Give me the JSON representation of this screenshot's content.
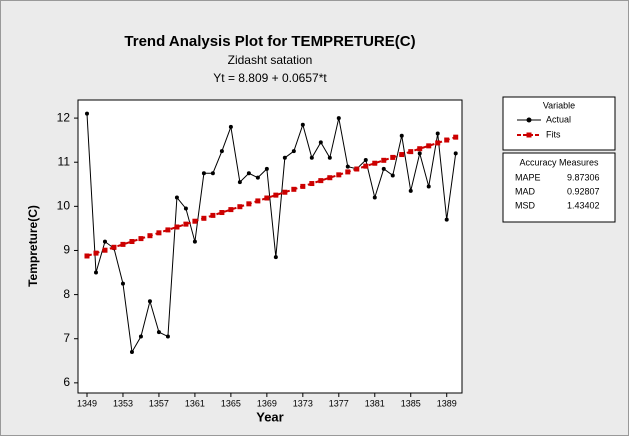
{
  "chart_data": {
    "type": "line",
    "title": "Trend Analysis Plot for TEMPRETURE(C)",
    "subtitle": "Zidasht satation",
    "equation": "Yt = 8.809 + 0.0657*t",
    "x_label": "Year",
    "y_label": "Tempreture(C)",
    "x": [
      1349,
      1350,
      1351,
      1352,
      1353,
      1354,
      1355,
      1356,
      1357,
      1358,
      1359,
      1360,
      1361,
      1362,
      1363,
      1364,
      1365,
      1366,
      1367,
      1368,
      1369,
      1370,
      1371,
      1372,
      1373,
      1374,
      1375,
      1376,
      1377,
      1378,
      1379,
      1380,
      1381,
      1382,
      1383,
      1384,
      1385,
      1386,
      1387,
      1388,
      1389,
      1390
    ],
    "series": [
      {
        "name": "Actual",
        "color": "#000000",
        "marker": "circle",
        "dashed": false,
        "values": [
          12.1,
          8.5,
          9.2,
          9.05,
          8.25,
          6.7,
          7.05,
          7.85,
          7.15,
          7.05,
          10.2,
          9.95,
          9.2,
          10.75,
          10.75,
          11.25,
          11.8,
          10.55,
          10.75,
          10.65,
          10.85,
          8.85,
          11.1,
          11.25,
          11.85,
          11.1,
          11.45,
          11.1,
          12.0,
          10.9,
          10.85,
          11.05,
          10.2,
          10.85,
          10.7,
          11.6,
          10.35,
          11.2,
          10.45,
          11.65,
          9.7,
          11.2
        ]
      },
      {
        "name": "Fits",
        "color": "#cc0000",
        "marker": "square",
        "dashed": true,
        "values": [
          8.875,
          8.94,
          9.006,
          9.072,
          9.138,
          9.203,
          9.269,
          9.335,
          9.4,
          9.466,
          9.532,
          9.597,
          9.663,
          9.729,
          9.795,
          9.86,
          9.926,
          9.992,
          10.057,
          10.123,
          10.189,
          10.254,
          10.32,
          10.386,
          10.452,
          10.517,
          10.583,
          10.649,
          10.714,
          10.78,
          10.846,
          10.911,
          10.977,
          11.043,
          11.109,
          11.174,
          11.24,
          11.306,
          11.371,
          11.437,
          11.503,
          11.568
        ]
      }
    ],
    "legend_title": "Variable",
    "legend_position": "right",
    "xlim": [
      1348,
      1390.7
    ],
    "ylim": [
      5.77,
      12.41
    ],
    "xticks": [
      1349,
      1353,
      1357,
      1361,
      1365,
      1369,
      1373,
      1377,
      1381,
      1385,
      1389
    ],
    "yticks": [
      6,
      7,
      8,
      9,
      10,
      11,
      12
    ],
    "accuracy": {
      "title": "Accuracy Measures",
      "rows": [
        [
          "MAPE",
          "9.87306"
        ],
        [
          "MAD",
          "0.92807"
        ],
        [
          "MSD",
          "1.43402"
        ]
      ]
    }
  }
}
